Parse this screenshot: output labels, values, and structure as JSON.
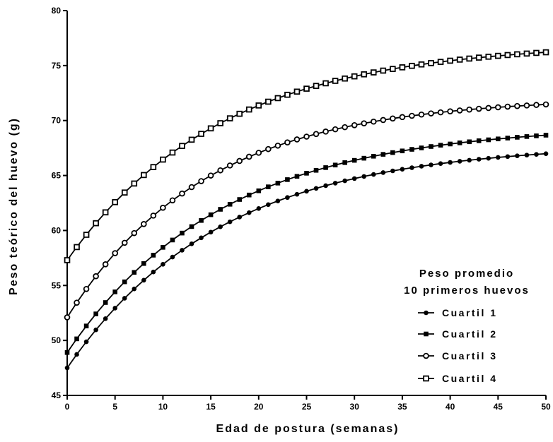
{
  "chart_data": {
    "type": "line",
    "xlabel": "Edad de postura (semanas)",
    "ylabel": "Peso teórico del huevo (g)",
    "xlim": [
      0,
      50
    ],
    "ylim": [
      45,
      80
    ],
    "xticks": [
      0,
      5,
      10,
      15,
      20,
      25,
      30,
      35,
      40,
      45,
      50
    ],
    "yticks": [
      45,
      50,
      55,
      60,
      65,
      70,
      75,
      80
    ],
    "grid": false,
    "legend": {
      "title_line1": "Peso promedio",
      "title_line2": "10 primeros huevos",
      "placement": "bottom-right"
    },
    "series": [
      {
        "name": "Cuartil 1",
        "marker": "filled-circle",
        "start": 47.5,
        "asymptote": 67.9,
        "rate": 0.062,
        "x_step": 1,
        "x_max": 50
      },
      {
        "name": "Cuartil 2",
        "marker": "filled-square",
        "start": 48.9,
        "asymptote": 69.6,
        "rate": 0.062,
        "x_step": 1,
        "x_max": 50
      },
      {
        "name": "Cuartil 3",
        "marker": "open-circle",
        "start": 52.1,
        "asymptote": 72.1,
        "rate": 0.069,
        "x_step": 1,
        "x_max": 50
      },
      {
        "name": "Cuartil 4",
        "marker": "open-square",
        "start": 57.3,
        "asymptote": 77.1,
        "rate": 0.062,
        "x_step": 1,
        "x_max": 50
      }
    ]
  }
}
